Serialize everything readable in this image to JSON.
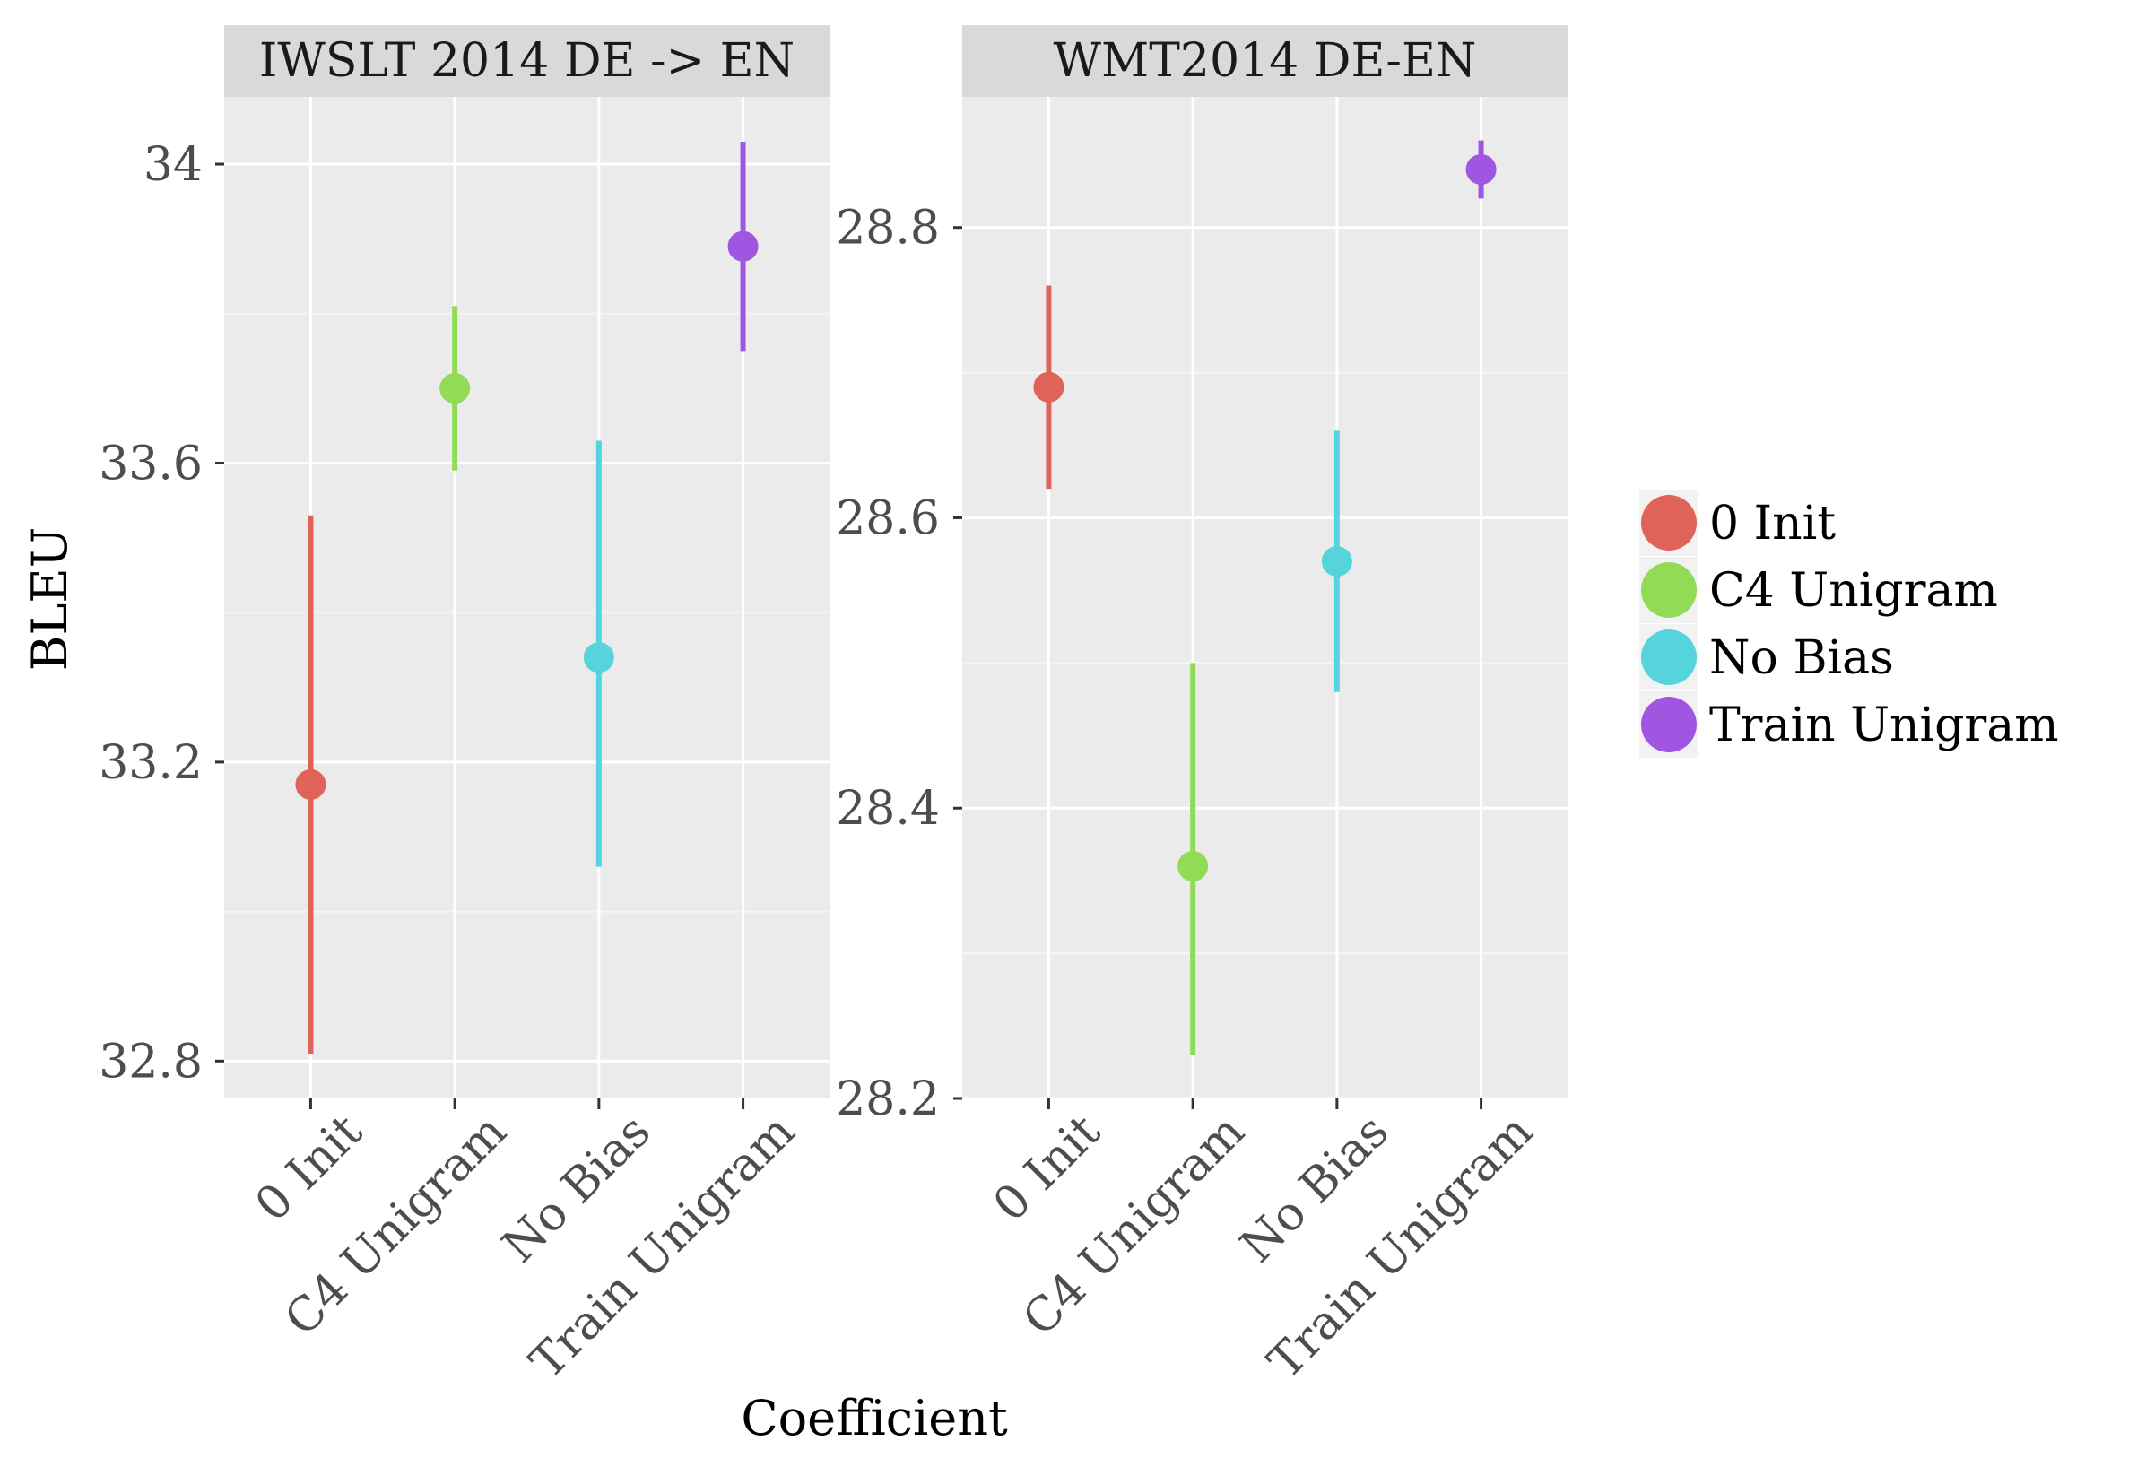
{
  "chart_data": {
    "type": "pointrange",
    "xlabel": "Coefficient",
    "ylabel": "BLEU",
    "categories": [
      "0 Init",
      "C4 Unigram",
      "No Bias",
      "Train Unigram"
    ],
    "legend": {
      "position": "right",
      "entries": [
        {
          "name": "0 Init",
          "color": "#E0635A"
        },
        {
          "name": "C4 Unigram",
          "color": "#92DB56"
        },
        {
          "name": "No Bias",
          "color": "#56D4DC"
        },
        {
          "name": "Train Unigram",
          "color": "#A056E0"
        }
      ]
    },
    "panels": [
      {
        "title": "IWSLT 2014 DE -> EN",
        "ylim": [
          32.75,
          34.09
        ],
        "yticks": [
          32.8,
          33.2,
          33.6,
          34.0
        ],
        "ytick_labels": [
          "32.8",
          "33.2",
          "33.6",
          "34"
        ],
        "points": [
          {
            "category": "0 Init",
            "y": 33.17,
            "ymin": 32.81,
            "ymax": 33.53
          },
          {
            "category": "C4 Unigram",
            "y": 33.7,
            "ymin": 33.59,
            "ymax": 33.81
          },
          {
            "category": "No Bias",
            "y": 33.34,
            "ymin": 33.06,
            "ymax": 33.63
          },
          {
            "category": "Train Unigram",
            "y": 33.89,
            "ymin": 33.75,
            "ymax": 34.03
          }
        ]
      },
      {
        "title": "WMT2014 DE-EN",
        "ylim": [
          28.2,
          28.89
        ],
        "yticks": [
          28.2,
          28.4,
          28.6,
          28.8
        ],
        "ytick_labels": [
          "28.2",
          "28.4",
          "28.6",
          "28.8"
        ],
        "points": [
          {
            "category": "0 Init",
            "y": 28.69,
            "ymin": 28.62,
            "ymax": 28.76
          },
          {
            "category": "C4 Unigram",
            "y": 28.36,
            "ymin": 28.23,
            "ymax": 28.5
          },
          {
            "category": "No Bias",
            "y": 28.57,
            "ymin": 28.48,
            "ymax": 28.66
          },
          {
            "category": "Train Unigram",
            "y": 28.84,
            "ymin": 28.82,
            "ymax": 28.86
          }
        ]
      }
    ]
  }
}
